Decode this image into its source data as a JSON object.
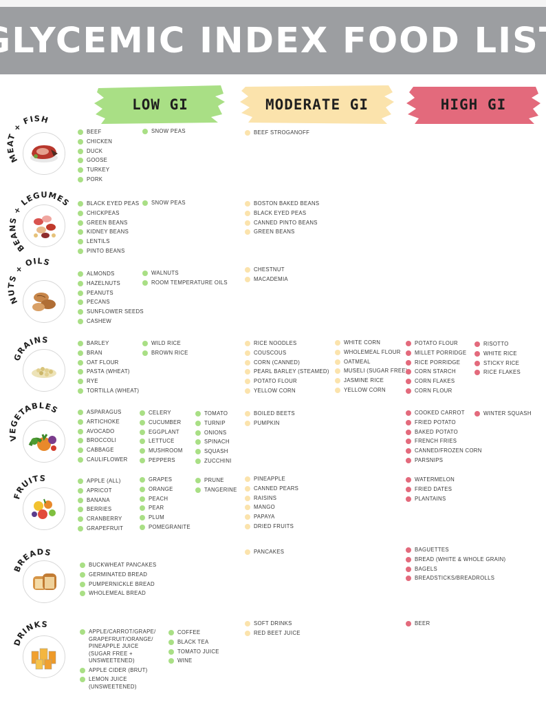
{
  "title": "GLYCEMIC INDEX FOOD LIST",
  "colors": {
    "header": "#9c9ea1",
    "low": "#a9df85",
    "moderate": "#fbe3ac",
    "high": "#e36a7c"
  },
  "labels": {
    "low": "LOW GI",
    "moderate": "MODERATE GI",
    "high": "HIGH GI"
  },
  "categories": [
    {
      "name": "MEAT + FISH",
      "icon": "meat-icon",
      "low": [
        [
          "BEEF",
          "CHICKEN",
          "DUCK",
          "GOOSE",
          "TURKEY",
          "PORK"
        ],
        [
          "SNOW PEAS"
        ]
      ],
      "moderate": [
        [
          "BEEF STROGANOFF"
        ]
      ],
      "high": []
    },
    {
      "name": "BEANS + LEGUMES",
      "icon": "beans-icon",
      "low": [
        [
          "BLACK EYED PEAS",
          "CHICKPEAS",
          "GREEN BEANS",
          "KIDNEY BEANS",
          "LENTILS",
          "PINTO BEANS"
        ],
        [
          "SNOW PEAS"
        ]
      ],
      "moderate": [
        [
          "BOSTON BAKED BEANS",
          "BLACK EYED PEAS",
          "CANNED PINTO BEANS",
          "GREEN BEANS"
        ]
      ],
      "high": []
    },
    {
      "name": "NUTS + OILS",
      "icon": "nuts-icon",
      "low": [
        [
          "ALMONDS",
          "HAZELNUTS",
          "PEANUTS",
          "PECANS",
          "SUNFLOWER SEEDS",
          "CASHEW"
        ],
        [
          "WALNUTS",
          "ROOM TEMPERATURE OILS"
        ]
      ],
      "moderate": [
        [
          "CHESTNUT",
          "MACADEMIA"
        ]
      ],
      "high": []
    },
    {
      "name": "GRAINS",
      "icon": "grains-icon",
      "low": [
        [
          "BARLEY",
          "BRAN",
          "OAT FLOUR",
          "PASTA (WHEAT)",
          "RYE",
          "TORTILLA (WHEAT)"
        ],
        [
          "WILD RICE",
          "BROWN RICE"
        ]
      ],
      "moderate": [
        [
          "RICE NOODLES",
          "COUSCOUS",
          "CORN (CANNED)",
          "PEARL BARLEY (STEAMED)",
          "POTATO FLOUR",
          "YELLOW CORN"
        ],
        [
          "WHITE CORN",
          "WHOLEMEAL FLOUR",
          "OATMEAL",
          "MUSELI (SUGAR FREE)",
          "JASMINE RICE",
          "YELLOW CORN"
        ]
      ],
      "high": [
        [
          "POTATO FLOUR",
          "MILLET PORRIDGE",
          "RICE PORRIDGE",
          "CORN STARCH",
          "CORN FLAKES",
          "CORN FLOUR"
        ],
        [
          "RISOTTO",
          "WHITE RICE",
          "STICKY RICE",
          "RICE FLAKES"
        ]
      ]
    },
    {
      "name": "VEGETABLES",
      "icon": "vegetables-icon",
      "low": [
        [
          "ASPARAGUS",
          "ARTICHOKE",
          "AVOCADO",
          "BROCCOLI",
          "CABBAGE",
          "CAULIFLOWER"
        ],
        [
          "CELERY",
          "CUCUMBER",
          "EGGPLANT",
          "LETTUCE",
          "MUSHROOM",
          "PEPPERS"
        ],
        [
          "TOMATO",
          "TURNIP",
          "ONIONS",
          "SPINACH",
          "SQUASH",
          "ZUCCHINI"
        ]
      ],
      "moderate": [
        [
          "BOILED BEETS",
          "PUMPKIN"
        ]
      ],
      "high": [
        [
          "COOKED CARROT",
          "FRIED POTATO",
          "BAKED POTATO",
          "FRENCH FRIES",
          "CANNED/FROZEN CORN",
          "PARSNIPS"
        ],
        [
          "WINTER SQUASH"
        ]
      ]
    },
    {
      "name": "FRUITS",
      "icon": "fruits-icon",
      "low": [
        [
          "APPLE (ALL)",
          "APRICOT",
          "BANANA",
          "BERRIES",
          "CRANBERRY",
          "GRAPEFRUIT"
        ],
        [
          "GRAPES",
          "ORANGE",
          "PEACH",
          "PEAR",
          "PLUM",
          "POMEGRANITE"
        ],
        [
          "PRUNE",
          "TANGERINE"
        ]
      ],
      "moderate": [
        [
          "PINEAPPLE",
          "CANNED PEARS",
          "RAISINS",
          "MANGO",
          "PAPAYA",
          "DRIED FRUITS"
        ]
      ],
      "high": [
        [
          "WATERMELON",
          "FRIED DATES",
          "PLANTAINS"
        ]
      ]
    },
    {
      "name": "BREADS",
      "icon": "bread-icon",
      "low": [
        [
          "BUCKWHEAT PANCAKES",
          "GERMINATED BREAD",
          "PUMPERNICKLE BREAD",
          "WHOLEMEAL BREAD"
        ]
      ],
      "moderate": [
        [
          "PANCAKES"
        ]
      ],
      "high": [
        [
          "BAGUETTES",
          "BREAD (WHITE & WHOLE GRAIN)",
          "BAGELS",
          "BREADSTICKS/BREADROLLS"
        ]
      ]
    },
    {
      "name": "DRINKS",
      "icon": "drinks-icon",
      "low": [
        [
          "APPLE/CARROT/GRAPE/ GRAPEFRUIT/ORANGE/ PINEAPPLE JUICE (SUGAR FREE + UNSWEETENED)",
          "APPLE CIDER (BRUT)",
          "LEMON JUICE (UNSWEETENED)"
        ],
        [
          "COFFEE",
          "BLACK TEA",
          "TOMATO JUICE",
          "WINE"
        ]
      ],
      "moderate": [
        [
          "SOFT DRINKS",
          "RED BEET JUICE"
        ]
      ],
      "high": [
        [
          "BEER"
        ]
      ]
    }
  ]
}
